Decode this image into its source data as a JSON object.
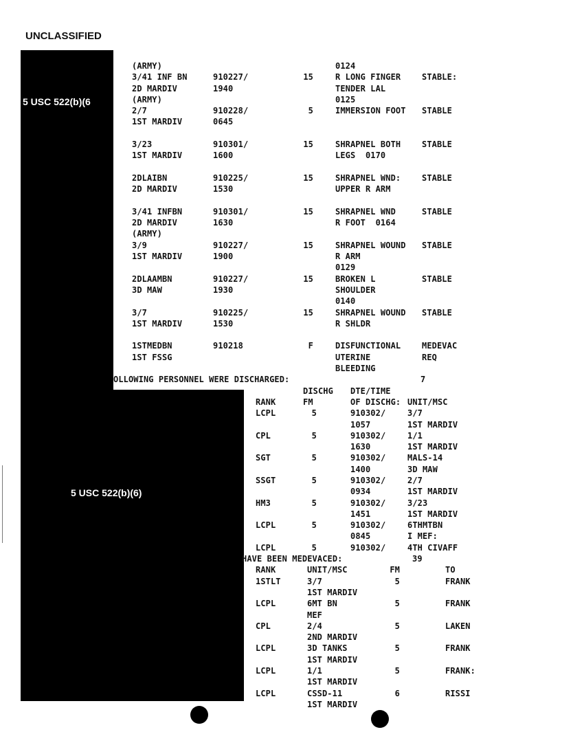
{
  "header": {
    "classification": "UNCLASSIFIED"
  },
  "redactions": {
    "label_top": "5 USC 522(b)(6",
    "label_bottom": "5 USC 522(b)(6)"
  },
  "casualties": [
    [
      "(ARMY)",
      "",
      "",
      "0124",
      ""
    ],
    [
      "3/41 INF BN",
      "910227/",
      "15",
      "R LONG FINGER",
      "STABLE:"
    ],
    [
      "2D MARDIV",
      "1940",
      "",
      "TENDER LAL",
      ""
    ],
    [
      "(ARMY)",
      "",
      "",
      "0125",
      ""
    ],
    [
      "2/7",
      "910228/",
      "5",
      "IMMERSION FOOT",
      "STABLE"
    ],
    [
      "1ST MARDIV",
      "0645",
      "",
      "",
      ""
    ],
    [
      "",
      "",
      "",
      "",
      ""
    ],
    [
      "3/23",
      "910301/",
      "15",
      "SHRAPNEL BOTH",
      "STABLE"
    ],
    [
      "1ST MARDIV",
      "1600",
      "",
      "LEGS  0170",
      ""
    ],
    [
      "",
      "",
      "",
      "",
      ""
    ],
    [
      "2DLAIBN",
      "910225/",
      "15",
      "SHRAPNEL WND:",
      "STABLE"
    ],
    [
      "2D MARDIV",
      "1530",
      "",
      "UPPER R ARM",
      ""
    ],
    [
      "",
      "",
      "",
      "",
      ""
    ],
    [
      "3/41 INFBN",
      "910301/",
      "15",
      "SHRAPNEL WND",
      "STABLE"
    ],
    [
      "2D MARDIV",
      "1630",
      "",
      "R FOOT  0164",
      ""
    ],
    [
      "(ARMY)",
      "",
      "",
      "",
      ""
    ],
    [
      "3/9",
      "910227/",
      "15",
      "SHRAPNEL WOUND",
      "STABLE"
    ],
    [
      "1ST MARDIV",
      "1900",
      "",
      "R ARM",
      ""
    ],
    [
      "",
      "",
      "",
      "0129",
      ""
    ],
    [
      "2DLAAMBN",
      "910227/",
      "15",
      "BROKEN L",
      "STABLE"
    ],
    [
      "3D MAW",
      "1930",
      "",
      "SHOULDER",
      ""
    ],
    [
      "",
      "",
      "",
      "0140",
      ""
    ],
    [
      "3/7",
      "910225/",
      "15",
      "SHRAPNEL WOUND",
      "STABLE"
    ],
    [
      "1ST MARDIV",
      "1530",
      "",
      "R SHLDR",
      ""
    ],
    [
      "",
      "",
      "",
      "",
      ""
    ],
    [
      "1STMEDBN",
      "910218",
      "F",
      "DISFUNCTIONAL",
      "MEDEVAC"
    ],
    [
      "1ST FSSG",
      "",
      "",
      "UTERINE",
      "REQ"
    ],
    [
      "",
      "",
      "",
      "BLEEDING",
      ""
    ]
  ],
  "discharged": {
    "title": "OLLOWING PERSONNEL WERE DISCHARGED:",
    "count": "7",
    "header_top": [
      "",
      "DISCHG",
      "DTE/TIME",
      ""
    ],
    "header": [
      "RANK",
      "FM",
      "OF DISCHG:",
      "UNIT/MSC"
    ],
    "rows": [
      [
        "LCPL",
        "5",
        "910302/",
        "3/7"
      ],
      [
        "",
        "",
        "1057",
        "1ST MARDIV"
      ],
      [
        "CPL",
        "5",
        "910302/",
        "1/1"
      ],
      [
        "",
        "",
        "1630",
        "1ST MARDIV"
      ],
      [
        "SGT",
        "5",
        "910302/",
        "MALS-14"
      ],
      [
        "",
        "",
        "1400",
        "3D MAW"
      ],
      [
        "SSGT",
        "5",
        "910302/",
        "2/7"
      ],
      [
        "",
        "",
        "0934",
        "1ST MARDIV"
      ],
      [
        "HM3",
        "5",
        "910302/",
        "3/23"
      ],
      [
        "",
        "",
        "1451",
        "1ST MARDIV"
      ],
      [
        "LCPL",
        "5",
        "910302/",
        "6THMTBN"
      ],
      [
        "",
        "",
        "0845",
        "I MEF:"
      ],
      [
        "LCPL",
        "5",
        "910302/",
        "4TH CIVAFF"
      ]
    ]
  },
  "medevaced": {
    "title": "HAVE BEEN MEDEVACED:",
    "count": "39",
    "header": [
      "RANK",
      "UNIT/MSC",
      "FM",
      "TO"
    ],
    "rows": [
      [
        "1STLT",
        "3/7",
        "5",
        "FRANK"
      ],
      [
        "",
        "1ST MARDIV",
        "",
        ""
      ],
      [
        "LCPL",
        "6MT BN",
        "5",
        "FRANK"
      ],
      [
        "",
        "MEF",
        "",
        ""
      ],
      [
        "CPL",
        "2/4",
        "5",
        "LAKEN"
      ],
      [
        "",
        "2ND MARDIV",
        "",
        ""
      ],
      [
        "LCPL",
        "3D TANKS",
        "5",
        "FRANK"
      ],
      [
        "",
        "1ST MARDIV",
        "",
        ""
      ],
      [
        "LCPL",
        "1/1",
        "5",
        "FRANK:"
      ],
      [
        "",
        "1ST MARDIV",
        "",
        ""
      ],
      [
        "LCPL",
        "CSSD-11",
        "6",
        "RISSI"
      ],
      [
        "",
        "1ST MARDIV",
        "",
        ""
      ]
    ]
  }
}
